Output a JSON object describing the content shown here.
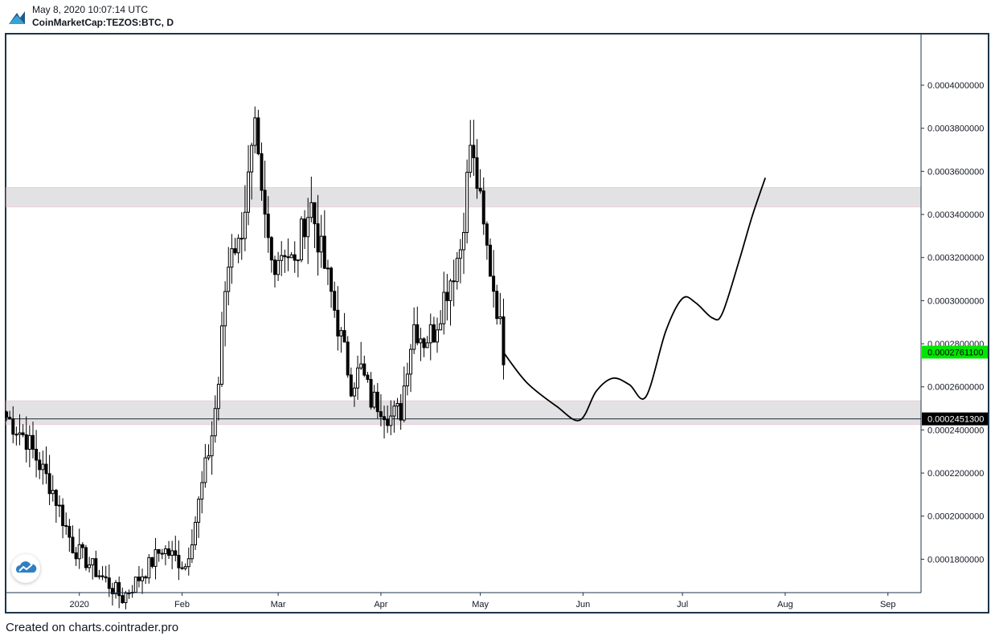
{
  "header": {
    "timestamp": "May 8, 2020 10:07:14 UTC",
    "symbol": "CoinMarketCap:TEZOS:BTC, D",
    "logo_icon": "cointrader-logo"
  },
  "footer": {
    "text": "Created on charts.cointrader.pro"
  },
  "colors": {
    "zone": "#e2e2e4",
    "candle": "#000000",
    "current_price_bg": "#00e600",
    "level_price_bg": "#000000",
    "frame": "#1e3448"
  },
  "chart_data": {
    "type": "candlestick",
    "y_axis": {
      "ticks": [
        "0.0001800000",
        "0.0002000000",
        "0.0002200000",
        "0.0002400000",
        "0.0002600000",
        "0.0002800000",
        "0.0003000000",
        "0.0003200000",
        "0.0003400000",
        "0.0003600000",
        "0.0003800000",
        "0.0004000000"
      ],
      "tick_values": [
        0.00018,
        0.0002,
        0.00022,
        0.00024,
        0.00026,
        0.00028,
        0.0003,
        0.00032,
        0.00034,
        0.00036,
        0.00038,
        0.0004
      ],
      "range": [
        0.0001645,
        0.0004235
      ]
    },
    "x_axis": {
      "ticks": [
        "2020",
        "Feb",
        "Mar",
        "Apr",
        "May",
        "Jun",
        "Jul",
        "Aug",
        "Sep"
      ],
      "tick_dates": [
        "2020-01-01",
        "2020-02-01",
        "2020-03-01",
        "2020-04-01",
        "2020-05-01",
        "2020-06-01",
        "2020-07-01",
        "2020-08-01",
        "2020-09-01"
      ],
      "range": [
        "2019-12-10",
        "2020-09-11"
      ]
    },
    "price_labels": [
      {
        "label": "0.0002761100",
        "value": 0.00027611,
        "role": "current"
      },
      {
        "label": "0.0002451300",
        "value": 0.00024513,
        "role": "level"
      }
    ],
    "zones": [
      {
        "from": 0.0003435,
        "to": 0.0003525
      },
      {
        "from": 0.0002425,
        "to": 0.0002535
      }
    ],
    "horizontal_line": 0.00024513,
    "anchors": [
      {
        "date": "2019-12-10",
        "close": 0.000246
      },
      {
        "date": "2019-12-16",
        "close": 0.000236
      },
      {
        "date": "2019-12-24",
        "close": 0.000212
      },
      {
        "date": "2019-12-30",
        "close": 0.000186
      },
      {
        "date": "2020-01-07",
        "close": 0.000173
      },
      {
        "date": "2020-01-14",
        "close": 0.000162
      },
      {
        "date": "2020-01-21",
        "close": 0.000175
      },
      {
        "date": "2020-01-26",
        "close": 0.000185
      },
      {
        "date": "2020-02-02",
        "close": 0.000177
      },
      {
        "date": "2020-02-05",
        "close": 0.000198
      },
      {
        "date": "2020-02-08",
        "close": 0.000222
      },
      {
        "date": "2020-02-10",
        "close": 0.000238
      },
      {
        "date": "2020-02-12",
        "close": 0.000262
      },
      {
        "date": "2020-02-14",
        "close": 0.000305
      },
      {
        "date": "2020-02-16",
        "close": 0.000328
      },
      {
        "date": "2020-02-18",
        "close": 0.000325
      },
      {
        "date": "2020-02-21",
        "close": 0.000355
      },
      {
        "date": "2020-02-23",
        "close": 0.000376
      },
      {
        "date": "2020-02-25",
        "close": 0.000345
      },
      {
        "date": "2020-02-28",
        "close": 0.000318
      },
      {
        "date": "2020-03-03",
        "close": 0.000325
      },
      {
        "date": "2020-03-06",
        "close": 0.000315
      },
      {
        "date": "2020-03-09",
        "close": 0.000338
      },
      {
        "date": "2020-03-11",
        "close": 0.000344
      },
      {
        "date": "2020-03-14",
        "close": 0.000322
      },
      {
        "date": "2020-03-17",
        "close": 0.000303
      },
      {
        "date": "2020-03-20",
        "close": 0.000282
      },
      {
        "date": "2020-03-23",
        "close": 0.000262
      },
      {
        "date": "2020-03-26",
        "close": 0.000268
      },
      {
        "date": "2020-03-29",
        "close": 0.000254
      },
      {
        "date": "2020-04-01",
        "close": 0.000252
      },
      {
        "date": "2020-04-04",
        "close": 0.000246
      },
      {
        "date": "2020-04-07",
        "close": 0.000249
      },
      {
        "date": "2020-04-09",
        "close": 0.000272
      },
      {
        "date": "2020-04-11",
        "close": 0.000289
      },
      {
        "date": "2020-04-14",
        "close": 0.000282
      },
      {
        "date": "2020-04-17",
        "close": 0.000286
      },
      {
        "date": "2020-04-20",
        "close": 0.000302
      },
      {
        "date": "2020-04-23",
        "close": 0.000315
      },
      {
        "date": "2020-04-25",
        "close": 0.000325
      },
      {
        "date": "2020-04-27",
        "close": 0.000355
      },
      {
        "date": "2020-04-28",
        "close": 0.000373
      },
      {
        "date": "2020-04-29",
        "close": 0.000362
      },
      {
        "date": "2020-04-30",
        "close": 0.000355
      },
      {
        "date": "2020-05-02",
        "close": 0.000332
      },
      {
        "date": "2020-05-04",
        "close": 0.000315
      },
      {
        "date": "2020-05-06",
        "close": 0.000298
      },
      {
        "date": "2020-05-08",
        "close": 0.000276
      }
    ],
    "projection": [
      {
        "date": "2020-05-08",
        "value": 0.000276
      },
      {
        "date": "2020-05-15",
        "value": 0.000262
      },
      {
        "date": "2020-05-24",
        "value": 0.000251
      },
      {
        "date": "2020-05-31",
        "value": 0.0002445
      },
      {
        "date": "2020-06-05",
        "value": 0.000258
      },
      {
        "date": "2020-06-10",
        "value": 0.000264
      },
      {
        "date": "2020-06-15",
        "value": 0.000261
      },
      {
        "date": "2020-06-20",
        "value": 0.0002555
      },
      {
        "date": "2020-06-26",
        "value": 0.000286
      },
      {
        "date": "2020-07-01",
        "value": 0.000301
      },
      {
        "date": "2020-07-05",
        "value": 0.000299
      },
      {
        "date": "2020-07-10",
        "value": 0.000292
      },
      {
        "date": "2020-07-13",
        "value": 0.000294
      },
      {
        "date": "2020-07-18",
        "value": 0.000318
      },
      {
        "date": "2020-07-22",
        "value": 0.000339
      },
      {
        "date": "2020-07-26",
        "value": 0.000357
      }
    ]
  }
}
